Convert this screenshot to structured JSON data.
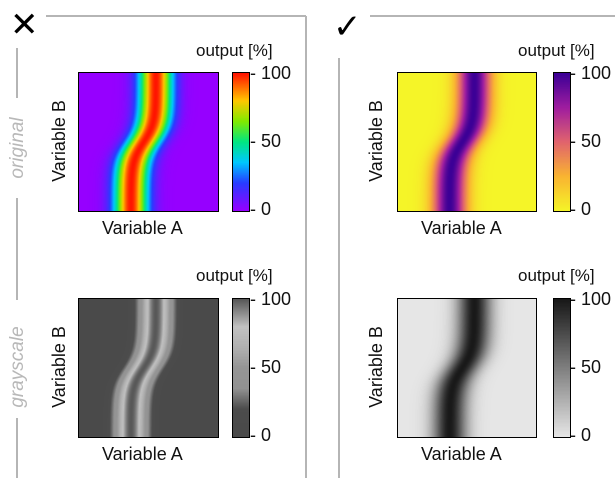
{
  "marks": {
    "wrong": "✕",
    "right": "✓"
  },
  "rows": {
    "original": "original",
    "grayscale": "grayscale"
  },
  "axes": {
    "x": "Variable A",
    "y": "Variable B"
  },
  "colorbar": {
    "title": "output [%]",
    "ticks": [
      "100",
      "50",
      "0"
    ]
  },
  "colors": {
    "divider": "#b5b5b5",
    "frame": "#000000"
  },
  "colormaps": [
    "rainbow",
    "plasma",
    "gray",
    "gray_r"
  ]
}
